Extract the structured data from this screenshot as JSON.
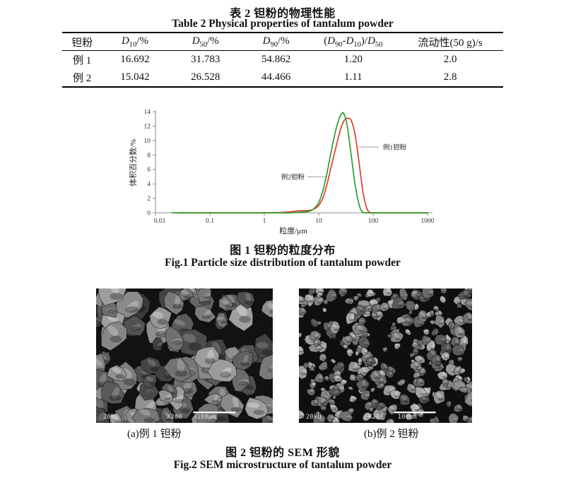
{
  "table2": {
    "title_cn": "表 2  钽粉的物理性能",
    "title_en": "Table 2 Physical properties of tantalum powder",
    "headers": [
      [
        {
          "t": "钽粉"
        }
      ],
      [
        {
          "t": "D",
          "i": true
        },
        {
          "t": "10",
          "sub": true
        },
        {
          "t": "/%"
        }
      ],
      [
        {
          "t": "D",
          "i": true
        },
        {
          "t": "50",
          "sub": true
        },
        {
          "t": "/%"
        }
      ],
      [
        {
          "t": "D",
          "i": true
        },
        {
          "t": "90",
          "sub": true
        },
        {
          "t": "/%"
        }
      ],
      [
        {
          "t": "("
        },
        {
          "t": "D",
          "i": true
        },
        {
          "t": "90",
          "sub": true
        },
        {
          "t": "-"
        },
        {
          "t": "D",
          "i": true
        },
        {
          "t": "10",
          "sub": true
        },
        {
          "t": ")/"
        },
        {
          "t": "D",
          "i": true
        },
        {
          "t": "50",
          "sub": true
        }
      ],
      [
        {
          "t": "流动性(50 g)/s"
        }
      ]
    ],
    "rows": [
      [
        "例 1",
        "16.692",
        "31.783",
        "54.862",
        "1.20",
        "2.0"
      ],
      [
        "例 2",
        "15.042",
        "26.528",
        "44.466",
        "1.11",
        "2.8"
      ]
    ]
  },
  "fig1": {
    "caption_cn": "图 1  钽粉的粒度分布",
    "caption_en": "Fig.1 Particle size distribution of tantalum powder"
  },
  "fig2": {
    "caption_cn": "图 2  钽粉的 SEM 形貌",
    "caption_en": "Fig.2 SEM microstructure of tantalum powder",
    "panel_a": {
      "label": "(a)例 1 钽粉",
      "hud": {
        "kv": "20kU",
        "mag": "X200",
        "scale": "100μm"
      }
    },
    "panel_b": {
      "label": "(b)例 2 钽粉",
      "hud": {
        "kv": "20kU",
        "mag": "X200",
        "scale": "100μm"
      }
    }
  },
  "chart_data": {
    "type": "line",
    "title": "",
    "xlabel": "粒度/μm",
    "ylabel": "体积百分数/%",
    "x_scale": "log",
    "xlim": [
      0.01,
      1000
    ],
    "ylim": [
      0,
      14
    ],
    "x_ticks": [
      "0.01",
      "0.1",
      "1",
      "10",
      "100",
      "1000"
    ],
    "y_ticks": [
      0,
      2,
      4,
      6,
      8,
      10,
      12,
      14
    ],
    "grid": false,
    "legend_position": "inline-annotations",
    "axis_color": "#8f8f8f",
    "series": [
      {
        "name": "例1钽粉",
        "color": "#e23b26",
        "points": [
          [
            0.03,
            0
          ],
          [
            1,
            0
          ],
          [
            2,
            0.05
          ],
          [
            3,
            0.15
          ],
          [
            4,
            0.25
          ],
          [
            5,
            0.3
          ],
          [
            6,
            0.3
          ],
          [
            7,
            0.35
          ],
          [
            8,
            0.5
          ],
          [
            9,
            0.7
          ],
          [
            10,
            1.0
          ],
          [
            11,
            1.5
          ],
          [
            12,
            2.1
          ],
          [
            13,
            2.9
          ],
          [
            14,
            3.8
          ],
          [
            15,
            4.7
          ],
          [
            16,
            5.6
          ],
          [
            18,
            7.2
          ],
          [
            20,
            8.6
          ],
          [
            22,
            9.9
          ],
          [
            24,
            11.0
          ],
          [
            26,
            11.9
          ],
          [
            28,
            12.5
          ],
          [
            30,
            12.9
          ],
          [
            33,
            13.1
          ],
          [
            36,
            13.1
          ],
          [
            39,
            12.9
          ],
          [
            42,
            12.3
          ],
          [
            46,
            11.1
          ],
          [
            50,
            9.4
          ],
          [
            55,
            7.1
          ],
          [
            60,
            4.8
          ],
          [
            65,
            2.9
          ],
          [
            70,
            1.6
          ],
          [
            75,
            0.8
          ],
          [
            80,
            0.3
          ],
          [
            85,
            0.1
          ],
          [
            90,
            0
          ],
          [
            120,
            0
          ],
          [
            1000,
            0
          ]
        ]
      },
      {
        "name": "例2钽粉",
        "color": "#2a9e2d",
        "points": [
          [
            0.02,
            0
          ],
          [
            1,
            0
          ],
          [
            3,
            0
          ],
          [
            4,
            0.05
          ],
          [
            5,
            0.1
          ],
          [
            6,
            0.15
          ],
          [
            7,
            0.25
          ],
          [
            8,
            0.5
          ],
          [
            9,
            0.9
          ],
          [
            10,
            1.4
          ],
          [
            11,
            2.2
          ],
          [
            12,
            3.1
          ],
          [
            13,
            4.2
          ],
          [
            14,
            5.3
          ],
          [
            15,
            6.4
          ],
          [
            16,
            7.5
          ],
          [
            18,
            9.5
          ],
          [
            20,
            11.1
          ],
          [
            22,
            12.3
          ],
          [
            24,
            13.2
          ],
          [
            26,
            13.7
          ],
          [
            28,
            13.9
          ],
          [
            30,
            13.5
          ],
          [
            32,
            12.8
          ],
          [
            34,
            11.7
          ],
          [
            36,
            10.4
          ],
          [
            38,
            9.0
          ],
          [
            40,
            7.7
          ],
          [
            43,
            5.8
          ],
          [
            46,
            4.2
          ],
          [
            50,
            2.6
          ],
          [
            54,
            1.4
          ],
          [
            58,
            0.6
          ],
          [
            62,
            0.2
          ],
          [
            66,
            0.05
          ],
          [
            70,
            0
          ],
          [
            100,
            0
          ],
          [
            1000,
            0
          ]
        ]
      }
    ],
    "annotations": [
      {
        "text": "例1钽粉",
        "series": 0,
        "side": "right"
      },
      {
        "text": "例2钽粉",
        "series": 1,
        "side": "left"
      }
    ]
  }
}
